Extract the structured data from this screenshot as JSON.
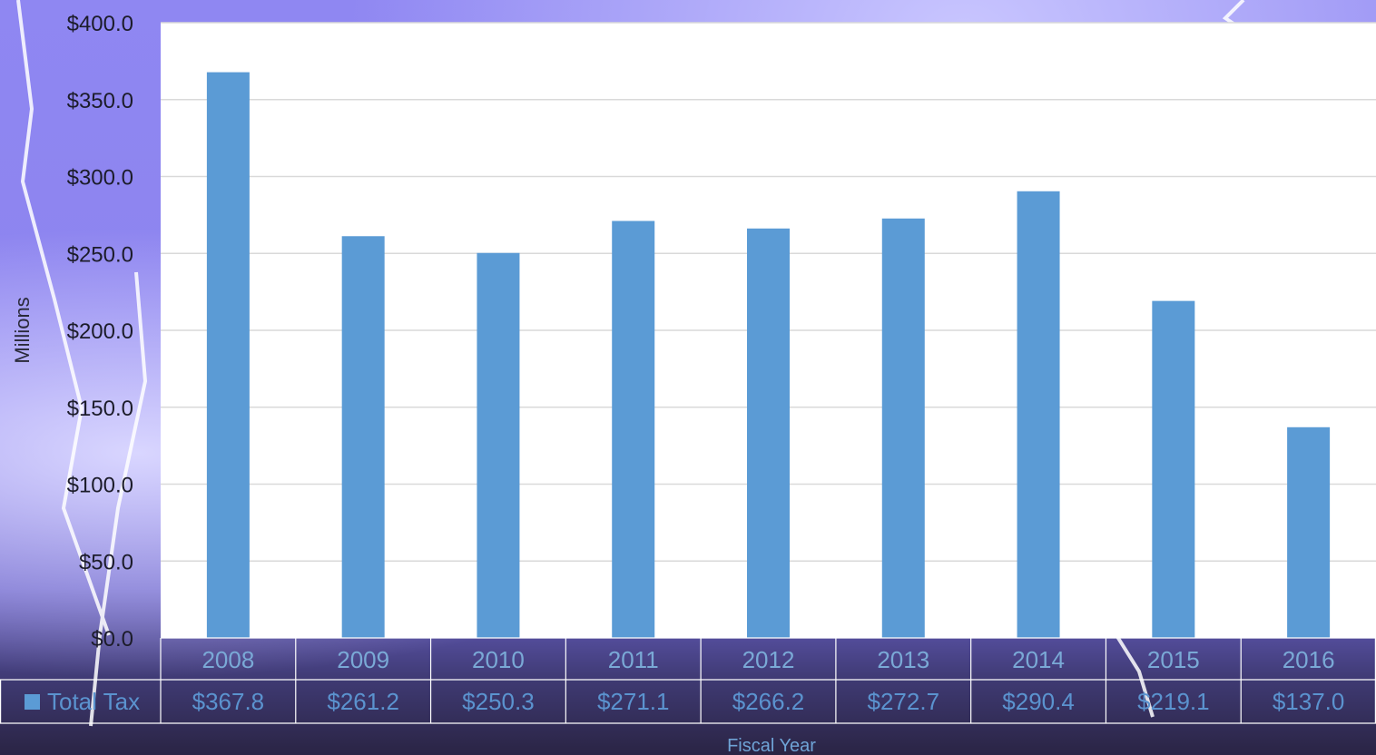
{
  "chart_data": {
    "type": "bar",
    "categories": [
      "2008",
      "2009",
      "2010",
      "2011",
      "2012",
      "2013",
      "2014",
      "2015",
      "2016"
    ],
    "series": [
      {
        "name": "Total Tax",
        "values": [
          367.8,
          261.2,
          250.3,
          271.1,
          266.2,
          272.7,
          290.4,
          219.1,
          137.0
        ]
      }
    ],
    "value_labels": [
      "$367.8",
      "$261.2",
      "$250.3",
      "$271.1",
      "$266.2",
      "$272.7",
      "$290.4",
      "$219.1",
      "$137.0"
    ],
    "y_ticks": [
      "$0.0",
      "$50.0",
      "$100.0",
      "$150.0",
      "$200.0",
      "$250.0",
      "$300.0",
      "$350.0",
      "$400.0"
    ],
    "ylim": [
      0,
      400
    ],
    "ylabel": "Millions",
    "xlabel": "Fiscal Year",
    "legend_label": "Total Tax",
    "grid": true,
    "bar_color": "#5b9bd5",
    "plot_background": "#ffffff",
    "gridline_color": "#d9d9d9",
    "data_table": true
  }
}
